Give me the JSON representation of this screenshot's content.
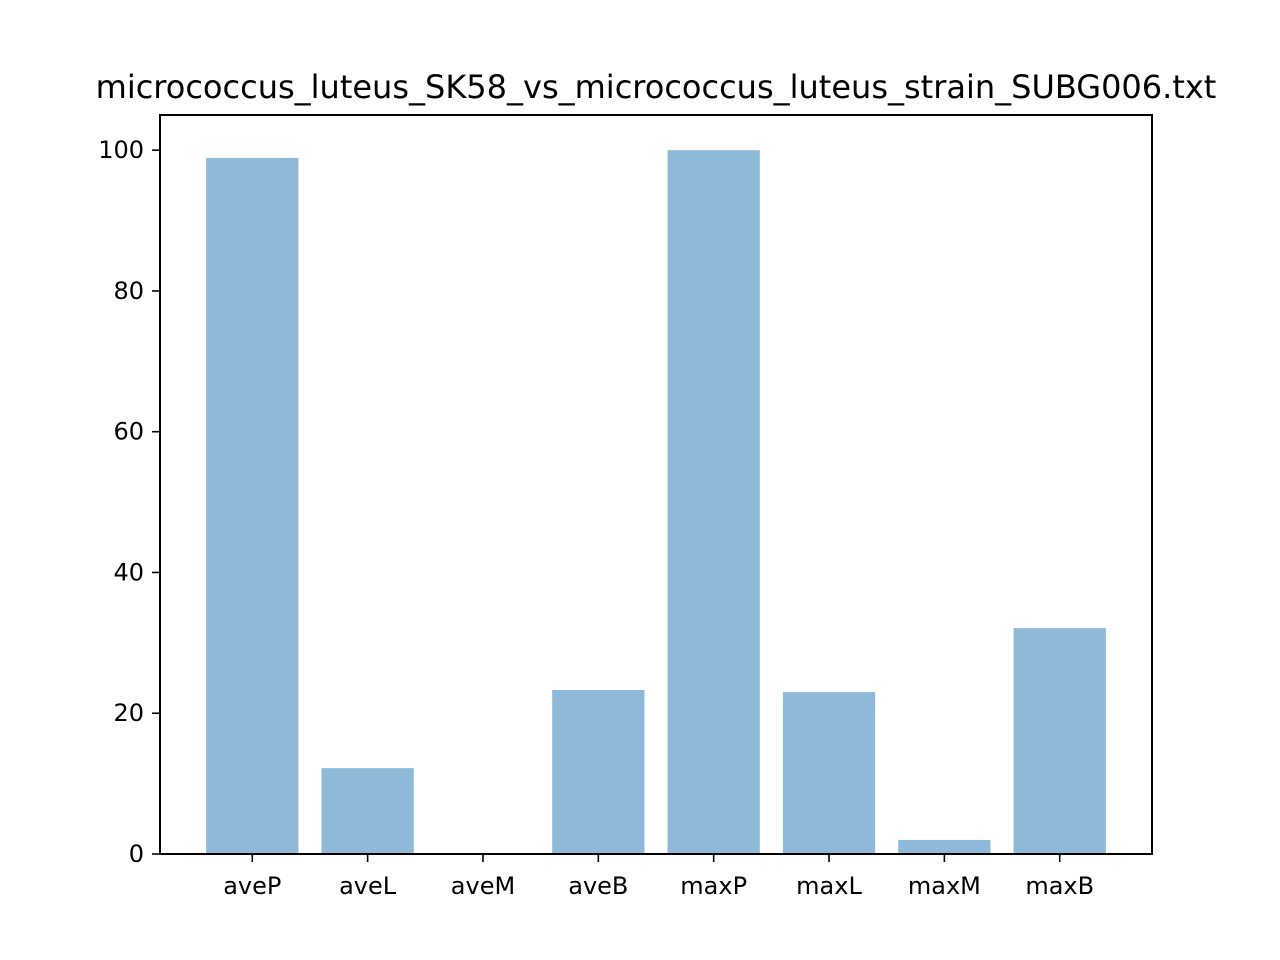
{
  "chart_data": {
    "type": "bar",
    "title": "micrococcus_luteus_SK58_vs_micrococcus_luteus_strain_SUBG006.txt",
    "xlabel": "",
    "ylabel": "",
    "categories": [
      "aveP",
      "aveL",
      "aveM",
      "aveB",
      "maxP",
      "maxL",
      "maxM",
      "maxB"
    ],
    "values": [
      98.9,
      12.2,
      0.0,
      23.3,
      100.0,
      23.0,
      2.0,
      32.1
    ],
    "ylim": [
      0,
      105
    ],
    "yticks": [
      0,
      20,
      40,
      60,
      80,
      100
    ],
    "ytick_labels": [
      "0",
      "20",
      "40",
      "60",
      "80",
      "100"
    ],
    "grid": false,
    "bar_color": "#8fb9d9"
  }
}
